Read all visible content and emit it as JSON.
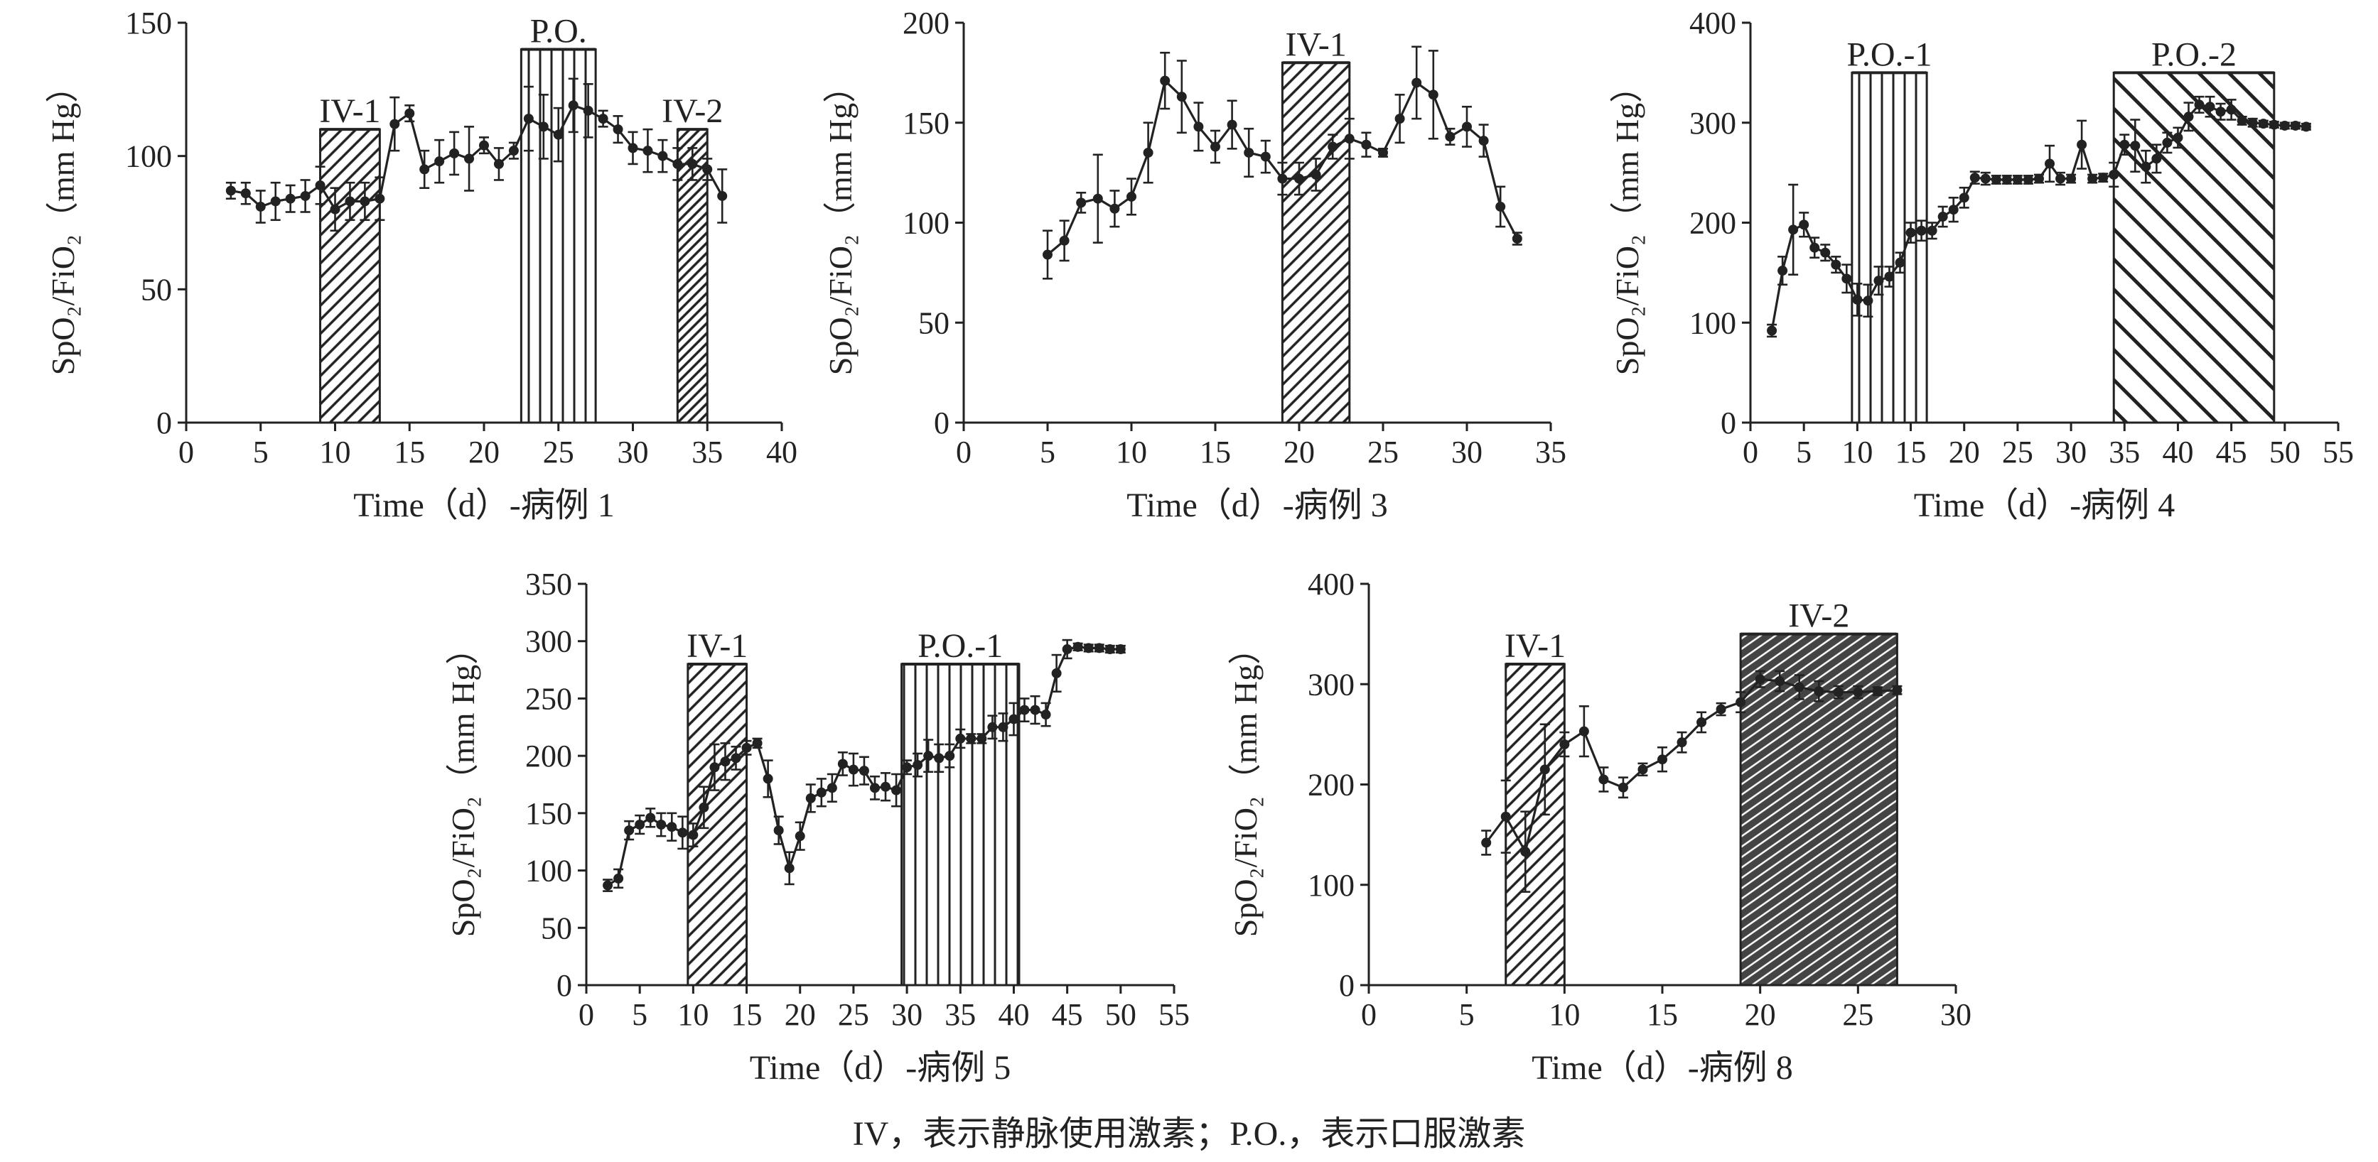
{
  "caption": "IV，表示静脉使用激素；P.O.，表示口服激素",
  "y_axis_title": "SpO₂/FiO₂（mm Hg）",
  "chart_data": [
    {
      "type": "line",
      "xlabel": "Time（d）-病例 1",
      "ylabel": "SpO₂/FiO₂（mm Hg）",
      "xlim": [
        0,
        40
      ],
      "ylim": [
        0,
        150
      ],
      "xticks": [
        0,
        5,
        10,
        15,
        20,
        25,
        30,
        35,
        40
      ],
      "yticks": [
        0,
        50,
        100,
        150
      ],
      "x": [
        3,
        4,
        5,
        6,
        7,
        8,
        9,
        10,
        11,
        12,
        13,
        14,
        15,
        16,
        17,
        18,
        19,
        20,
        21,
        22,
        23,
        24,
        25,
        26,
        27,
        28,
        29,
        30,
        31,
        32,
        33,
        34,
        35,
        36
      ],
      "y": [
        87,
        86,
        81,
        83,
        84,
        85,
        89,
        80,
        83,
        83,
        84,
        112,
        116,
        95,
        98,
        101,
        99,
        104,
        97,
        102,
        114,
        111,
        108,
        119,
        117,
        114,
        110,
        103,
        102,
        100,
        97,
        97,
        95,
        85
      ],
      "err": [
        3,
        4,
        6,
        7,
        5,
        6,
        7,
        8,
        7,
        7,
        8,
        10,
        3,
        7,
        8,
        8,
        12,
        3,
        6,
        3,
        12,
        12,
        10,
        10,
        10,
        3,
        5,
        6,
        8,
        6,
        6,
        6,
        4,
        10
      ],
      "bands": [
        {
          "label": "IV-1",
          "x0": 9,
          "x1": 13,
          "ytop": 110,
          "pattern": "diag"
        },
        {
          "label": "P.O.",
          "x0": 22.5,
          "x1": 27.5,
          "ytop": 140,
          "pattern": "vert"
        },
        {
          "label": "IV-2",
          "x0": 33,
          "x1": 35,
          "ytop": 110,
          "pattern": "diagdense"
        }
      ]
    },
    {
      "type": "line",
      "xlabel": "Time（d）-病例 3",
      "ylabel": "SpO₂/FiO₂（mm Hg）",
      "xlim": [
        0,
        35
      ],
      "ylim": [
        0,
        200
      ],
      "xticks": [
        0,
        5,
        10,
        15,
        20,
        25,
        30,
        35
      ],
      "yticks": [
        0,
        50,
        100,
        150,
        200
      ],
      "x": [
        5,
        6,
        7,
        8,
        9,
        10,
        11,
        12,
        13,
        14,
        15,
        16,
        17,
        18,
        19,
        20,
        21,
        22,
        23,
        24,
        25,
        26,
        27,
        28,
        29,
        30,
        31,
        32,
        33
      ],
      "y": [
        84,
        91,
        110,
        112,
        107,
        113,
        135,
        171,
        163,
        148,
        138,
        149,
        135,
        133,
        122,
        122,
        124,
        138,
        142,
        139,
        135,
        152,
        170,
        164,
        143,
        148,
        141,
        108,
        92
      ],
      "err": [
        12,
        10,
        5,
        22,
        9,
        9,
        15,
        14,
        18,
        12,
        8,
        12,
        12,
        8,
        8,
        8,
        8,
        6,
        10,
        6,
        2,
        12,
        18,
        22,
        4,
        10,
        8,
        10,
        3
      ],
      "bands": [
        {
          "label": "IV-1",
          "x0": 19,
          "x1": 23,
          "ytop": 180,
          "pattern": "diag"
        }
      ]
    },
    {
      "type": "line",
      "xlabel": "Time（d）-病例 4",
      "ylabel": "SpO₂/FiO₂（mm Hg）",
      "xlim": [
        0,
        55
      ],
      "ylim": [
        0,
        400
      ],
      "xticks": [
        0,
        5,
        10,
        15,
        20,
        25,
        30,
        35,
        40,
        45,
        50,
        55
      ],
      "yticks": [
        0,
        100,
        200,
        300,
        400
      ],
      "x": [
        2,
        3,
        4,
        5,
        6,
        7,
        8,
        9,
        10,
        11,
        12,
        13,
        14,
        15,
        16,
        17,
        18,
        19,
        20,
        21,
        22,
        23,
        24,
        25,
        26,
        27,
        28,
        29,
        30,
        31,
        32,
        33,
        34,
        35,
        36,
        37,
        38,
        39,
        40,
        41,
        42,
        43,
        44,
        45,
        46,
        47,
        48,
        49,
        50,
        51,
        52
      ],
      "y": [
        92,
        152,
        193,
        198,
        175,
        170,
        158,
        144,
        123,
        122,
        142,
        146,
        160,
        190,
        192,
        192,
        206,
        213,
        225,
        245,
        244,
        243,
        243,
        243,
        243,
        244,
        259,
        244,
        244,
        278,
        244,
        245,
        248,
        278,
        277,
        256,
        264,
        280,
        285,
        306,
        318,
        316,
        311,
        313,
        302,
        300,
        299,
        298,
        297,
        297,
        296
      ],
      "err": [
        6,
        14,
        45,
        12,
        10,
        8,
        8,
        14,
        16,
        16,
        14,
        10,
        10,
        10,
        10,
        8,
        10,
        12,
        10,
        6,
        6,
        4,
        4,
        4,
        4,
        4,
        18,
        6,
        4,
        24,
        4,
        4,
        12,
        10,
        26,
        16,
        14,
        10,
        10,
        14,
        8,
        10,
        8,
        10,
        4,
        4,
        3,
        3,
        3,
        3,
        3
      ],
      "bands": [
        {
          "label": "P.O.-1",
          "x0": 9.5,
          "x1": 16.5,
          "ytop": 350,
          "pattern": "vert"
        },
        {
          "label": "P.O.-2",
          "x0": 34,
          "x1": 49,
          "ytop": 350,
          "pattern": "diagwide"
        }
      ]
    },
    {
      "type": "line",
      "xlabel": "Time（d）-病例 5",
      "ylabel": "SpO₂/FiO₂（mm Hg）",
      "xlim": [
        0,
        55
      ],
      "ylim": [
        0,
        350
      ],
      "xticks": [
        0,
        5,
        10,
        15,
        20,
        25,
        30,
        35,
        40,
        45,
        50,
        55
      ],
      "yticks": [
        0,
        50,
        100,
        150,
        200,
        250,
        300,
        350
      ],
      "x": [
        2,
        3,
        4,
        5,
        6,
        7,
        8,
        9,
        10,
        11,
        12,
        13,
        14,
        15,
        16,
        17,
        18,
        19,
        20,
        21,
        22,
        23,
        24,
        25,
        26,
        27,
        28,
        29,
        30,
        31,
        32,
        33,
        34,
        35,
        36,
        37,
        38,
        39,
        40,
        41,
        42,
        43,
        44,
        45,
        46,
        47,
        48,
        49,
        50
      ],
      "y": [
        87,
        93,
        135,
        140,
        146,
        140,
        138,
        133,
        131,
        155,
        190,
        195,
        198,
        207,
        211,
        180,
        135,
        102,
        130,
        163,
        168,
        172,
        193,
        188,
        187,
        172,
        173,
        170,
        190,
        192,
        200,
        198,
        200,
        215,
        215,
        215,
        225,
        225,
        232,
        240,
        240,
        236,
        272,
        293,
        295,
        294,
        294,
        293,
        293
      ],
      "err": [
        5,
        8,
        8,
        8,
        8,
        10,
        12,
        14,
        10,
        18,
        20,
        16,
        10,
        6,
        4,
        16,
        12,
        14,
        12,
        12,
        12,
        12,
        10,
        14,
        12,
        10,
        12,
        14,
        6,
        10,
        14,
        12,
        10,
        8,
        4,
        4,
        10,
        12,
        14,
        10,
        12,
        10,
        16,
        8,
        3,
        3,
        3,
        3,
        3
      ],
      "bands": [
        {
          "label": "IV-1",
          "x0": 9.5,
          "x1": 15,
          "ytop": 280,
          "pattern": "diag"
        },
        {
          "label": "P.O.-1",
          "x0": 29.5,
          "x1": 40.5,
          "ytop": 280,
          "pattern": "vert"
        }
      ]
    },
    {
      "type": "line",
      "xlabel": "Time（d）-病例 8",
      "ylabel": "SpO₂/FiO₂（mm Hg）",
      "xlim": [
        0,
        30
      ],
      "ylim": [
        0,
        400
      ],
      "xticks": [
        0,
        5,
        10,
        15,
        20,
        25,
        30
      ],
      "yticks": [
        0,
        100,
        200,
        300,
        400
      ],
      "x": [
        6,
        7,
        8,
        9,
        10,
        11,
        12,
        13,
        14,
        15,
        16,
        17,
        18,
        19,
        20,
        21,
        22,
        23,
        24,
        25,
        26,
        27
      ],
      "y": [
        142,
        168,
        133,
        215,
        240,
        253,
        205,
        197,
        215,
        225,
        242,
        262,
        275,
        282,
        305,
        303,
        297,
        293,
        292,
        292,
        293,
        294
      ],
      "err": [
        12,
        36,
        40,
        45,
        12,
        25,
        12,
        10,
        6,
        12,
        10,
        10,
        6,
        10,
        8,
        10,
        12,
        10,
        6,
        6,
        4,
        4
      ],
      "bands": [
        {
          "label": "IV-1",
          "x0": 7,
          "x1": 10,
          "ytop": 320,
          "pattern": "diag"
        },
        {
          "label": "IV-2",
          "x0": 19,
          "x1": 27,
          "ytop": 350,
          "pattern": "cross"
        }
      ]
    }
  ]
}
